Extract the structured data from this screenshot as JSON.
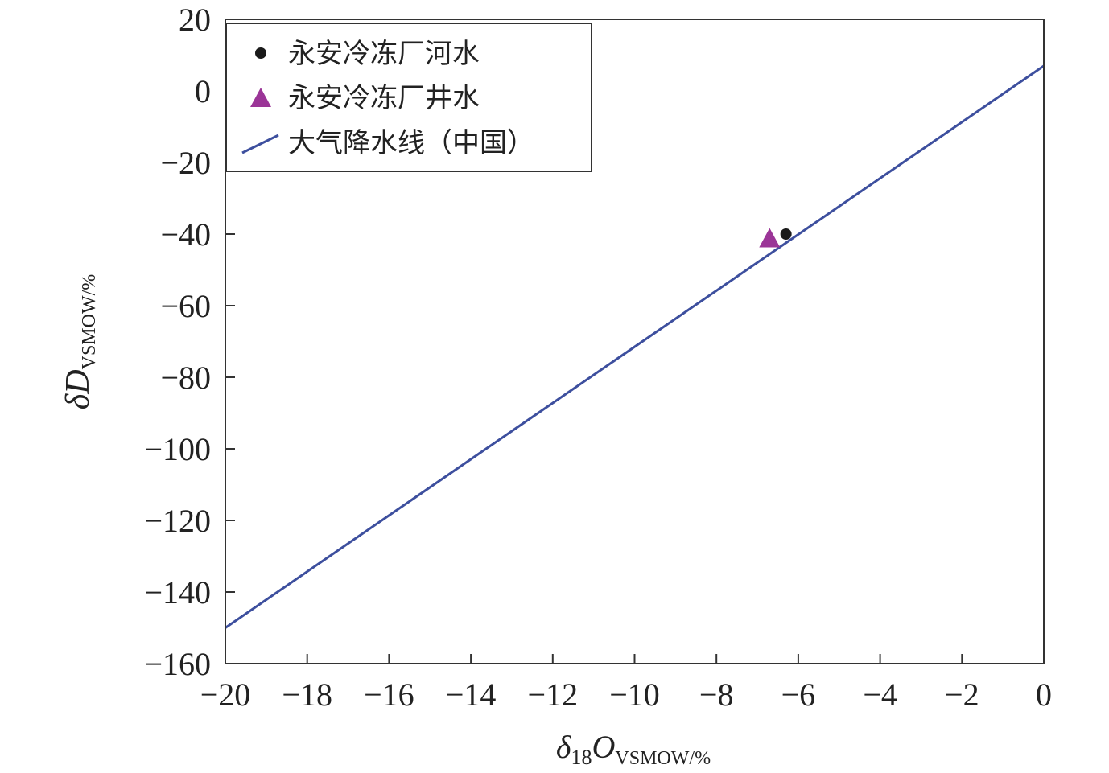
{
  "chart_data": {
    "type": "scatter",
    "xlim": [
      -20,
      0
    ],
    "ylim": [
      -160,
      20
    ],
    "x_ticks": [
      -20,
      -18,
      -16,
      -14,
      -12,
      -10,
      -8,
      -6,
      -4,
      -2,
      0
    ],
    "y_ticks": [
      20,
      0,
      -20,
      -40,
      -60,
      -80,
      -100,
      -120,
      -140,
      -160
    ],
    "x_tick_labels": [
      "−20",
      "−18",
      "−16",
      "−14",
      "−12",
      "−10",
      "−8",
      "−6",
      "−4",
      "−2",
      "0"
    ],
    "y_tick_labels": [
      "20",
      "0",
      "−20",
      "−40",
      "−60",
      "−80",
      "−100",
      "−120",
      "−140",
      "−160"
    ],
    "xlabel": {
      "prefix": "δ",
      "sub1": "18",
      "main": "O",
      "sub2": "VSMOW/%"
    },
    "ylabel": {
      "prefix": "δ",
      "main": "D",
      "sub": "VSMOW/%"
    },
    "legend_position": "top-left",
    "series": [
      {
        "name": "永安冷冻厂河水",
        "kind": "point",
        "marker": "circle",
        "color": "#1a1a1a",
        "points": [
          {
            "x": -6.3,
            "y": -40
          }
        ]
      },
      {
        "name": "永安冷冻厂井水",
        "kind": "point",
        "marker": "triangle",
        "color": "#9b3597",
        "points": [
          {
            "x": -6.7,
            "y": -41
          }
        ]
      },
      {
        "name": "大气降水线（中国）",
        "kind": "line",
        "color": "#3d4f9e",
        "points": [
          {
            "x": -20,
            "y": -150
          },
          {
            "x": 0,
            "y": 7
          }
        ]
      }
    ]
  }
}
